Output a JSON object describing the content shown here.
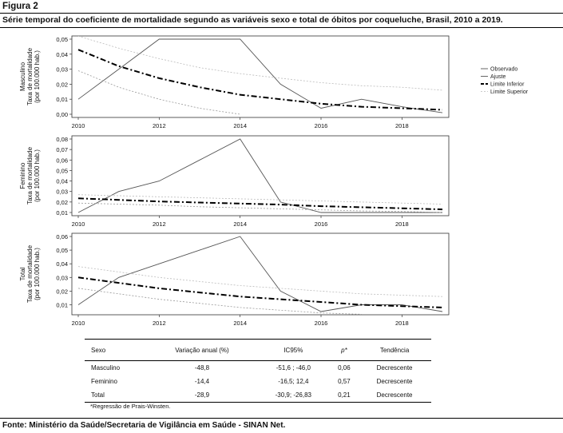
{
  "figure_label": "Figura 2",
  "title": "Série temporal do coeficiente de mortalidade segundo as variáveis sexo e total de óbitos por coqueluche, Brasil, 2010 a 2019.",
  "legend": [
    "Observado",
    "Ajuste",
    "Limite Inferior",
    "Limite Superior"
  ],
  "chart_data": [
    {
      "type": "line",
      "panel_label": "Masculino",
      "ylabel": "Taxa de mortalidade\n(por 100.000 hab.)",
      "x_ticks": [
        "2010",
        "2012",
        "2014",
        "2016",
        "2018"
      ],
      "y_ticks": [
        "0,00",
        "0,01",
        "0,02",
        "0,03",
        "0,04",
        "0,05"
      ],
      "xlim": [
        2010,
        2019
      ],
      "ylim": [
        0,
        0.05
      ],
      "x": [
        2010,
        2011,
        2012,
        2013,
        2014,
        2015,
        2016,
        2017,
        2018,
        2019
      ],
      "series": [
        {
          "name": "Observado",
          "values": [
            0.01,
            0.03,
            0.05,
            0.05,
            0.05,
            0.02,
            0.004,
            0.01,
            0.005,
            0.001
          ]
        },
        {
          "name": "Ajuste",
          "values": [
            0.043,
            0.032,
            0.024,
            0.018,
            0.013,
            0.01,
            0.007,
            0.005,
            0.004,
            0.003
          ]
        },
        {
          "name": "Limite Inferior",
          "values": [
            0.029,
            0.018,
            0.01,
            0.004,
            0.0,
            null,
            null,
            null,
            null,
            null
          ]
        },
        {
          "name": "Limite Superior",
          "values": [
            0.052,
            0.044,
            0.037,
            0.031,
            0.027,
            0.024,
            0.021,
            0.019,
            0.018,
            0.016
          ]
        }
      ]
    },
    {
      "type": "line",
      "panel_label": "Feminino",
      "ylabel": "Taxa de mortalidade\n(por 100.000 hab.)",
      "x_ticks": [
        "2010",
        "2012",
        "2014",
        "2016",
        "2018"
      ],
      "y_ticks": [
        "0,01",
        "0,02",
        "0,03",
        "0,04",
        "0,05",
        "0,06",
        "0,07",
        "0,08"
      ],
      "xlim": [
        2010,
        2019
      ],
      "ylim": [
        0.01,
        0.08
      ],
      "x": [
        2010,
        2011,
        2012,
        2013,
        2014,
        2015,
        2016,
        2017,
        2018,
        2019
      ],
      "series": [
        {
          "name": "Observado",
          "values": [
            0.01,
            0.03,
            0.04,
            0.06,
            0.08,
            0.02,
            0.01,
            0.01,
            0.01,
            0.01
          ]
        },
        {
          "name": "Ajuste",
          "values": [
            0.0235,
            0.022,
            0.0205,
            0.0195,
            0.0185,
            0.0175,
            0.016,
            0.015,
            0.014,
            0.013
          ]
        },
        {
          "name": "Limite Inferior",
          "values": [
            0.019,
            0.018,
            0.017,
            0.0155,
            0.0145,
            0.0135,
            0.0125,
            0.0115,
            0.011,
            0.01
          ]
        },
        {
          "name": "Limite Superior",
          "values": [
            0.027,
            0.026,
            0.025,
            0.024,
            0.023,
            0.022,
            0.021,
            0.02,
            0.019,
            0.018
          ]
        }
      ]
    },
    {
      "type": "line",
      "panel_label": "Total",
      "ylabel": "Taxa de mortalidade\n(por 100.000 hab.)",
      "x_ticks": [
        "2010",
        "2012",
        "2014",
        "2016",
        "2018"
      ],
      "y_ticks": [
        "0,01",
        "0,02",
        "0,03",
        "0,04",
        "0,05",
        "0,06"
      ],
      "xlim": [
        2010,
        2019
      ],
      "ylim": [
        0.005,
        0.06
      ],
      "x": [
        2010,
        2011,
        2012,
        2013,
        2014,
        2015,
        2016,
        2017,
        2018,
        2019
      ],
      "series": [
        {
          "name": "Observado",
          "values": [
            0.01,
            0.03,
            0.04,
            0.05,
            0.06,
            0.02,
            0.005,
            0.01,
            0.01,
            0.005
          ]
        },
        {
          "name": "Ajuste",
          "values": [
            0.03,
            0.026,
            0.022,
            0.019,
            0.016,
            0.014,
            0.012,
            0.01,
            0.009,
            0.008
          ]
        },
        {
          "name": "Limite Inferior",
          "values": [
            0.022,
            0.018,
            0.014,
            0.011,
            0.008,
            0.006,
            0.004,
            0.003,
            null,
            null
          ]
        },
        {
          "name": "Limite Superior",
          "values": [
            0.038,
            0.034,
            0.03,
            0.027,
            0.024,
            0.022,
            0.02,
            0.018,
            0.017,
            0.016
          ]
        }
      ]
    }
  ],
  "table": {
    "headers": [
      "Sexo",
      "Variação anual (%)",
      "IC95%",
      "p*",
      "Tendência"
    ],
    "rows": [
      [
        "Masculino",
        "-48,8",
        "-51,6 ; -46,0",
        "0,06",
        "Decrescente"
      ],
      [
        "Feminino",
        "-14,4",
        "-16,5; 12,4",
        "0,57",
        "Decrescente"
      ],
      [
        "Total",
        "-28,9",
        "-30,9; -26,83",
        "0,21",
        "Decrescente"
      ]
    ]
  },
  "footnote": "*Regressão de Prais-Winsten.",
  "source": "Fonte: Ministério da Saúde/Secretaria de Vigilância em Saúde - SINAN Net."
}
